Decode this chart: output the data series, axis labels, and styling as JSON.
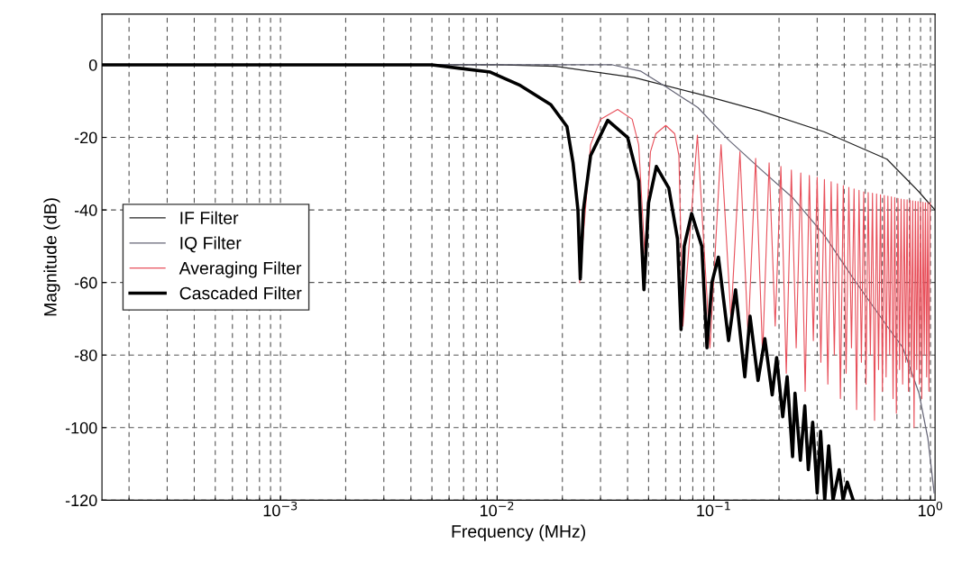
{
  "chart_data": {
    "type": "line",
    "xlabel": "Frequency (MHz)",
    "ylabel": "Magnitude (dB)",
    "log": "x",
    "grid": true,
    "legend": "center left",
    "line_style": "solid",
    "marker": "none",
    "xlim": [
      0.00015,
      1.05
    ],
    "ylim": [
      -120,
      14
    ],
    "xticks": [
      {
        "value": 0.001,
        "label": "10$^{−3}$"
      },
      {
        "value": 0.01,
        "label": "10$^{−2}$"
      },
      {
        "value": 0.1,
        "label": "10$^{−1}$"
      },
      {
        "value": 1,
        "label": "10$^{0}$"
      }
    ],
    "yticks": [
      -120,
      -100,
      -80,
      -60,
      -40,
      -20,
      0
    ],
    "series": [
      {
        "name": "IF Filter",
        "color": "#222222",
        "x": [
          0.00015,
          0.01,
          0.0186,
          0.043,
          0.0845,
          0.164,
          0.324,
          0.63,
          0.885,
          0.946,
          1.05
        ],
        "values": [
          0,
          0,
          -0.4,
          -3.5,
          -8,
          -12.7,
          -18.5,
          -26,
          -35,
          -37,
          -40
        ]
      },
      {
        "name": "IQ Filter",
        "color": "#666677",
        "x": [
          0.00015,
          0.01,
          0.034,
          0.0458,
          0.06,
          0.0845,
          0.117,
          0.164,
          0.231,
          0.324,
          0.438,
          0.63,
          0.746,
          0.885,
          0.973,
          1.04
        ],
        "values": [
          0,
          0,
          0,
          -1.7,
          -6,
          -11.8,
          -20.7,
          -28.7,
          -36.6,
          -47,
          -58.7,
          -72,
          -78,
          -90.5,
          -103,
          -118
        ]
      },
      {
        "name": "Averaging Filter",
        "color": "#e8505b",
        "x": [
          0.024,
          0.027,
          0.03,
          0.036,
          0.042,
          0.045,
          0.048,
          0.051,
          0.054,
          0.06,
          0.066,
          0.069,
          0.072,
          0.084,
          0.096,
          0.108,
          0.12,
          0.132,
          0.144,
          0.156,
          0.168,
          0.18,
          0.192,
          0.204,
          0.216,
          0.228,
          0.24,
          0.252,
          0.264,
          0.276,
          0.288,
          0.3,
          0.312,
          0.324,
          0.336,
          0.348,
          0.36,
          0.372,
          0.384,
          0.396,
          0.408,
          0.42,
          0.432,
          0.444,
          0.456,
          0.468,
          0.48,
          0.492,
          0.504,
          0.516,
          0.528,
          0.54,
          0.552,
          0.564,
          0.576,
          0.588,
          0.6,
          0.612,
          0.624,
          0.636,
          0.648,
          0.66,
          0.672,
          0.684,
          0.696,
          0.708,
          0.72,
          0.732,
          0.744,
          0.756,
          0.768,
          0.78,
          0.792,
          0.804,
          0.816,
          0.828,
          0.84,
          0.852,
          0.864,
          0.876,
          0.888,
          0.9,
          0.912,
          0.924,
          0.936,
          0.948,
          0.96,
          0.972,
          0.984,
          0.996
        ],
        "values": [
          -60,
          -22,
          -15,
          -12.3,
          -15,
          -22,
          -52,
          -24,
          -19,
          -16.7,
          -19,
          -25,
          -72,
          -19.4,
          -78,
          -22,
          -70,
          -24,
          -75,
          -25.8,
          -80,
          -27,
          -72,
          -28,
          -85,
          -29,
          -78,
          -29.8,
          -90,
          -30.5,
          -76,
          -31,
          -82,
          -31.6,
          -88,
          -32.2,
          -80,
          -32.8,
          -92,
          -33.3,
          -85,
          -33.8,
          -78,
          -34.2,
          -95,
          -34.6,
          -82,
          -35,
          -88,
          -35.2,
          -80,
          -35.4,
          -98,
          -35.6,
          -84,
          -35.8,
          -90,
          -36,
          -86,
          -36.2,
          -80,
          -36.4,
          -92,
          -36.6,
          -96,
          -36.8,
          -84,
          -37,
          -88,
          -37.1,
          -82,
          -37.2,
          -90,
          -37.4,
          -86,
          -37.5,
          -100,
          -37.6,
          -84,
          -37.7,
          -88,
          -37.8,
          -92,
          -37.9,
          -80,
          -38,
          -86,
          -38,
          -90,
          -38
        ]
      },
      {
        "name": "Cascaded Filter",
        "color": "#000000",
        "x": [
          0.00015,
          0.005,
          0.0093,
          0.0128,
          0.0177,
          0.021,
          0.0224,
          0.0236,
          0.0242,
          0.025,
          0.027,
          0.0324,
          0.04,
          0.045,
          0.0476,
          0.05,
          0.0543,
          0.062,
          0.068,
          0.0706,
          0.073,
          0.079,
          0.088,
          0.093,
          0.098,
          0.105,
          0.117,
          0.126,
          0.139,
          0.147,
          0.16,
          0.172,
          0.186,
          0.195,
          0.208,
          0.218,
          0.231,
          0.237,
          0.251,
          0.263,
          0.273,
          0.286,
          0.3,
          0.311,
          0.325,
          0.339,
          0.355,
          0.379,
          0.395,
          0.413,
          0.44
        ],
        "values": [
          0,
          0,
          -2,
          -5.7,
          -11,
          -17,
          -27,
          -40,
          -59,
          -40,
          -25,
          -15.3,
          -20,
          -32,
          -62,
          -38,
          -28,
          -34,
          -48,
          -73,
          -50,
          -41,
          -50,
          -78,
          -60,
          -53,
          -76,
          -62,
          -86,
          -69.3,
          -87,
          -75.5,
          -91,
          -80.7,
          -97,
          -86,
          -108,
          -90.5,
          -109,
          -94,
          -111.6,
          -98.5,
          -118,
          -101,
          -120,
          -105,
          -120,
          -111.6,
          -120,
          -115,
          -120
        ]
      }
    ]
  }
}
